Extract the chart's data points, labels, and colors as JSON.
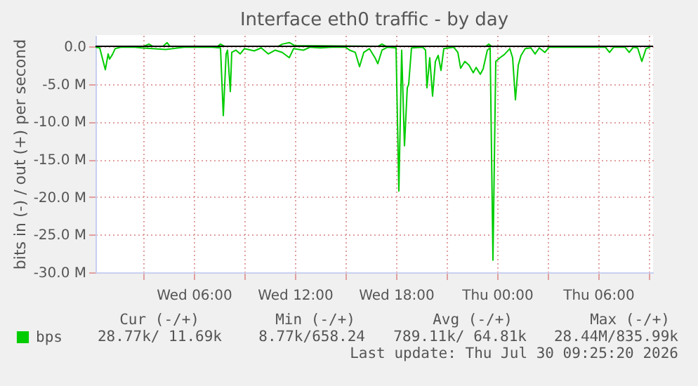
{
  "chart_data": {
    "type": "line",
    "title": "Interface eth0 traffic - by day",
    "ylabel": "bits in (-) / out (+) per second",
    "xlim": [
      "2026-07-29T00:10",
      "2026-07-30T09:15"
    ],
    "xticks": [
      {
        "value": "2026-07-29T03:00",
        "label": null
      },
      {
        "value": "2026-07-29T06:00",
        "label": "Wed 06:00"
      },
      {
        "value": "2026-07-29T09:00",
        "label": null
      },
      {
        "value": "2026-07-29T12:00",
        "label": "Wed 12:00"
      },
      {
        "value": "2026-07-29T15:00",
        "label": null
      },
      {
        "value": "2026-07-29T18:00",
        "label": "Wed 18:00"
      },
      {
        "value": "2026-07-29T21:00",
        "label": null
      },
      {
        "value": "2026-07-30T00:00",
        "label": "Thu 00:00"
      },
      {
        "value": "2026-07-30T03:00",
        "label": null
      },
      {
        "value": "2026-07-30T06:00",
        "label": "Thu 06:00"
      },
      {
        "value": "2026-07-30T09:00",
        "label": null
      }
    ],
    "ylim": [
      -30,
      1.5
    ],
    "yticks": [
      {
        "value": 0,
        "label": "0.0"
      },
      {
        "value": -5,
        "label": "-5.0 M"
      },
      {
        "value": -10,
        "label": "-10.0 M"
      },
      {
        "value": -15,
        "label": "-15.0 M"
      },
      {
        "value": -20,
        "label": "-20.0 M"
      },
      {
        "value": -25,
        "label": "-25.0 M"
      },
      {
        "value": -30,
        "label": "-30.0 M"
      }
    ],
    "grid": true,
    "legend": "bottom left",
    "series": [
      {
        "name": "bps",
        "color": "#00cc00",
        "x": [
          "2026-07-29T00:10",
          "2026-07-29T00:25",
          "2026-07-29T00:45",
          "2026-07-29T00:55",
          "2026-07-29T01:00",
          "2026-07-29T01:10",
          "2026-07-29T01:20",
          "2026-07-29T01:40",
          "2026-07-29T02:30",
          "2026-07-29T02:55",
          "2026-07-29T04:20",
          "2026-07-29T05:25",
          "2026-07-29T07:05",
          "2026-07-29T07:35",
          "2026-07-29T07:45",
          "2026-07-29T07:55",
          "2026-07-29T08:00",
          "2026-07-29T08:10",
          "2026-07-29T08:15",
          "2026-07-29T08:30",
          "2026-07-29T08:45",
          "2026-07-29T09:00",
          "2026-07-29T09:35",
          "2026-07-29T10:00",
          "2026-07-29T10:25",
          "2026-07-29T10:50",
          "2026-07-29T11:15",
          "2026-07-29T11:40",
          "2026-07-29T11:55",
          "2026-07-29T12:30",
          "2026-07-29T12:55",
          "2026-07-29T13:30",
          "2026-07-29T14:10",
          "2026-07-29T15:00",
          "2026-07-29T15:15",
          "2026-07-29T15:35",
          "2026-07-29T15:50",
          "2026-07-29T16:05",
          "2026-07-29T16:25",
          "2026-07-29T16:45",
          "2026-07-29T16:55",
          "2026-07-29T17:10",
          "2026-07-29T17:30",
          "2026-07-29T18:00",
          "2026-07-29T18:10",
          "2026-07-29T18:20",
          "2026-07-29T18:30",
          "2026-07-29T18:40",
          "2026-07-29T18:45",
          "2026-07-29T18:55",
          "2026-07-29T19:35",
          "2026-07-29T19:45",
          "2026-07-29T19:50",
          "2026-07-29T20:00",
          "2026-07-29T20:10",
          "2026-07-29T20:20",
          "2026-07-29T20:30",
          "2026-07-29T20:40",
          "2026-07-29T20:50",
          "2026-07-29T21:25",
          "2026-07-29T21:40",
          "2026-07-29T21:50",
          "2026-07-29T22:05",
          "2026-07-29T22:20",
          "2026-07-29T22:35",
          "2026-07-29T22:45",
          "2026-07-29T23:00",
          "2026-07-29T23:10",
          "2026-07-29T23:25",
          "2026-07-29T23:35",
          "2026-07-29T23:45",
          "2026-07-29T23:55",
          "2026-07-30T00:10",
          "2026-07-30T00:25",
          "2026-07-30T00:45",
          "2026-07-30T00:55",
          "2026-07-30T01:05",
          "2026-07-30T01:15",
          "2026-07-30T01:25",
          "2026-07-30T01:40",
          "2026-07-30T02:00",
          "2026-07-30T02:15",
          "2026-07-30T02:30",
          "2026-07-30T02:50",
          "2026-07-30T03:05",
          "2026-07-30T03:55",
          "2026-07-30T04:45",
          "2026-07-30T06:25",
          "2026-07-30T06:40",
          "2026-07-30T06:55",
          "2026-07-30T07:35",
          "2026-07-30T07:50",
          "2026-07-30T08:05",
          "2026-07-30T08:20",
          "2026-07-30T08:35",
          "2026-07-30T08:50",
          "2026-07-30T09:05"
        ],
        "values": [
          -0.1,
          -0.2,
          -3.1,
          -1.0,
          -1.7,
          -1.1,
          -0.3,
          -0.1,
          -0.1,
          -0.2,
          -0.4,
          -0.1,
          -0.1,
          -0.2,
          -9.2,
          -1.0,
          -0.5,
          -6.0,
          -0.8,
          -0.5,
          -1.0,
          -0.3,
          -0.6,
          -0.2,
          -1.0,
          -0.5,
          -0.8,
          -1.5,
          -0.3,
          -0.5,
          -0.1,
          -0.2,
          -0.1,
          -0.1,
          -0.5,
          -0.8,
          -2.7,
          -0.8,
          -0.3,
          -1.5,
          -2.3,
          -0.5,
          -0.1,
          -0.2,
          -19.2,
          -0.5,
          -13.2,
          -5.5,
          -5.0,
          -0.2,
          -0.1,
          -0.5,
          -5.5,
          -1.5,
          -6.6,
          -2.0,
          -1.2,
          -3.2,
          -0.3,
          -0.1,
          -0.8,
          -2.9,
          -2.0,
          -2.5,
          -3.5,
          -2.8,
          -3.7,
          -3.0,
          -0.5,
          -0.2,
          -28.4,
          -2.0,
          -1.5,
          -1.1,
          -0.3,
          -1.5,
          -7.1,
          -2.5,
          -1.2,
          -0.3,
          -0.2,
          -1.0,
          -0.2,
          -0.8,
          -0.1,
          -0.1,
          -0.1,
          -0.1,
          -0.8,
          -0.1,
          -0.1,
          -0.8,
          -0.1,
          -0.2,
          -2.0,
          -0.3,
          -0.1
        ]
      },
      {
        "color": "#00cc00",
        "x": [
          "2026-07-29T00:10",
          "2026-07-29T03:00",
          "2026-07-29T03:20",
          "2026-07-29T03:35",
          "2026-07-29T04:10",
          "2026-07-29T04:25",
          "2026-07-29T04:35",
          "2026-07-29T07:25",
          "2026-07-29T07:35",
          "2026-07-29T07:50",
          "2026-07-29T11:00",
          "2026-07-29T11:15",
          "2026-07-29T11:40",
          "2026-07-29T12:00",
          "2026-07-29T16:55",
          "2026-07-29T17:10",
          "2026-07-29T17:25",
          "2026-07-29T23:20",
          "2026-07-29T23:30",
          "2026-07-29T23:40",
          "2026-07-30T09:05"
        ],
        "values": [
          0.0,
          0.0,
          0.3,
          0.0,
          0.0,
          0.5,
          0.0,
          0.0,
          0.3,
          0.0,
          0.0,
          0.3,
          0.5,
          0.1,
          0.0,
          0.3,
          0.0,
          0.0,
          0.3,
          0.0,
          0.0
        ]
      }
    ],
    "ref_lines": [
      {
        "axis": "y",
        "value": 0,
        "color": "#000000"
      }
    ],
    "annotations": [
      "Cur (-/+)",
      "Min (-/+)",
      "Avg (-/+)",
      "Max (-/+)",
      "28.77k/ 11.69k",
      "8.77k/658.24",
      "789.11k/ 64.81k",
      "28.44M/835.99k",
      "Last update: Thu Jul 30 09:25:20 2026"
    ]
  }
}
